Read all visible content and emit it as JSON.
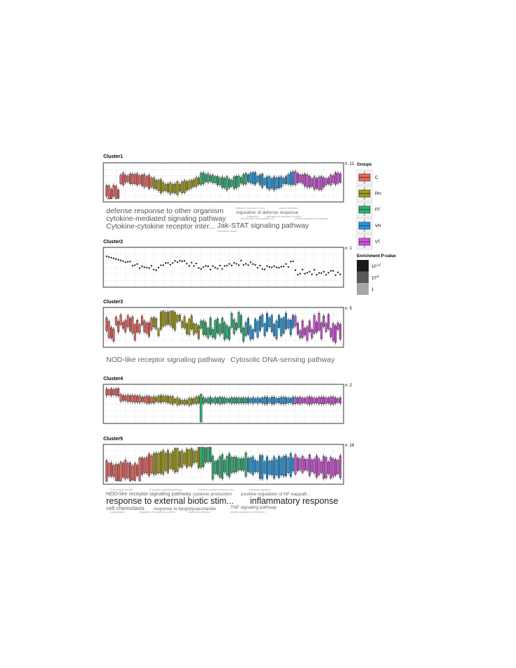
{
  "figure": {
    "legend_groups_title": "Groups",
    "legend_pval_title": "Enrichment P-value",
    "pval_levels": [
      {
        "label_base": "10",
        "label_exp": "-12",
        "color": "#1a1a1a"
      },
      {
        "label_base": "10",
        "label_exp": "-6",
        "color": "#595959"
      },
      {
        "label_base": "1",
        "label_exp": "",
        "color": "#a6a6a6"
      }
    ],
    "groups": [
      {
        "name": "C",
        "color": "#f2645f"
      },
      {
        "name": "PH",
        "color": "#a39e14"
      },
      {
        "name": "PT",
        "color": "#27b574"
      },
      {
        "name": "VH",
        "color": "#1f9be6"
      },
      {
        "name": "VT",
        "color": "#d94ee3"
      }
    ]
  },
  "chart_data": [
    {
      "type": "box",
      "title": "Cluster1",
      "n_label": "n: 11",
      "pattern": "cluster1",
      "terms": [
        {
          "text": "defense response to other organism",
          "level": 1
        },
        {
          "text": "cytokine-mediated signaling pathway",
          "level": 1
        },
        {
          "text": "Cytokine-cytokine receptor inter...",
          "level": 1
        },
        {
          "text": "Jak-STAT signaling pathway",
          "level": 1
        },
        {
          "text": "regulation of defense response",
          "level": 2
        },
        {
          "text": "defense response to virus",
          "level": 3
        },
        {
          "text": "protein secretion",
          "level": 3
        },
        {
          "text": "Influenza A",
          "level": 3
        },
        {
          "text": "regulation of response to extern...",
          "level": 3
        },
        {
          "text": "Natural killer cell mediated cyt...",
          "level": 3
        },
        {
          "text": "positive regulation of cytokine...",
          "level": 3
        },
        {
          "text": "Pancreatic cancer",
          "level": 3
        }
      ]
    },
    {
      "type": "scatter",
      "title": "Cluster2",
      "n_label": "n: 1",
      "pattern": "cluster2",
      "terms": []
    },
    {
      "type": "box",
      "title": "Cluster3",
      "n_label": "n: 5",
      "pattern": "cluster3",
      "terms": [
        {
          "text": "NOD-like receptor signaling pathway",
          "level": 2
        },
        {
          "text": "Cytosolic DNA-sensing pathway",
          "level": 2
        }
      ]
    },
    {
      "type": "box",
      "title": "Cluster4",
      "n_label": "n: 2",
      "pattern": "cluster4",
      "terms": []
    },
    {
      "type": "box",
      "title": "Cluster5",
      "n_label": "n: 16",
      "pattern": "cluster5",
      "terms": [
        {
          "text": "Rheumatoid arthritis",
          "level": 3
        },
        {
          "text": "Chemokine signaling pathway",
          "level": 3
        },
        {
          "text": "Cytokine-cytokine receptor inter...",
          "level": 3
        },
        {
          "text": "leukocyte migration",
          "level": 3
        },
        {
          "text": "NOD-like receptor signaling pathway",
          "level": 2
        },
        {
          "text": "cytokine production",
          "level": 2
        },
        {
          "text": "positive regulation of NF-kappaB...",
          "level": 2
        },
        {
          "text": "response to external biotic stim...",
          "level": 1
        },
        {
          "text": "inflammatory response",
          "level": 1
        },
        {
          "text": "cell chemotaxis",
          "level": 2
        },
        {
          "text": "response to lipopolysaccharide",
          "level": 2
        },
        {
          "text": "TNF signaling pathway",
          "level": 2
        },
        {
          "text": "Legionellosis",
          "level": 3
        },
        {
          "text": "regulation of response to extern...",
          "level": 3
        },
        {
          "text": "Salmonella infection",
          "level": 3
        },
        {
          "text": "positive regulation of defense r...",
          "level": 3
        }
      ]
    }
  ]
}
